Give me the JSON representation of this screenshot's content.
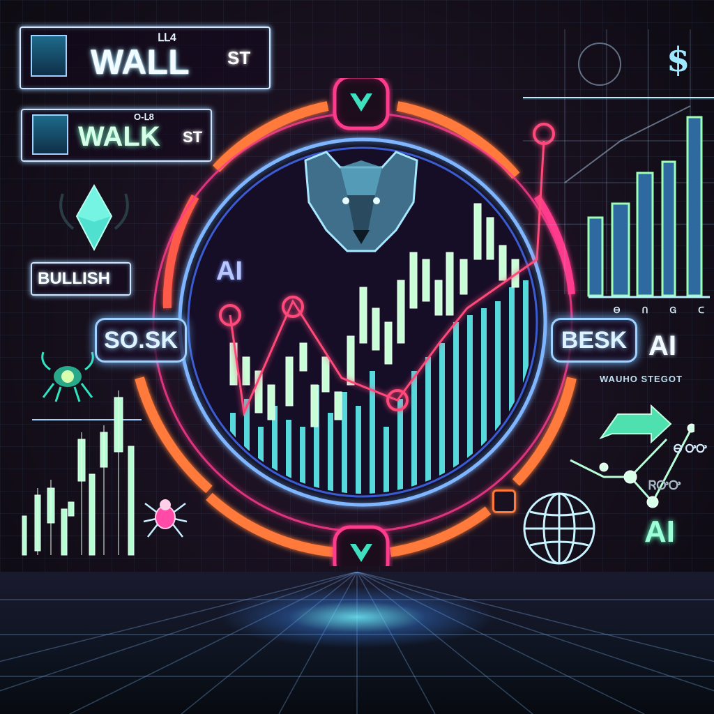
{
  "signs": {
    "top": {
      "title": "WALL",
      "ticker": "ST",
      "tag": "ᒪᒪ4"
    },
    "second": {
      "title": "WALK",
      "ticker": "ST",
      "tag": "O-ᒪ8"
    },
    "bullish": {
      "label": "BULLISH"
    }
  },
  "buttons": {
    "left": "SO.SK",
    "right": "BESK"
  },
  "labels": {
    "ai_center": "AI",
    "ai_right": "AI",
    "ai_bottom_right": "AI",
    "dollar": "$",
    "right_strip": "WAUHO STEGOT",
    "right_small": "Ꮎ ᎤᎤ",
    "right_tiny": "ᏒᎤᎤ",
    "axis_marks": "Ꮎ ᑎ Ꮐ ᑕ"
  },
  "colors": {
    "neon_pink": "#ff3b8d",
    "neon_orange": "#ff7a3a",
    "neon_cyan": "#6ff0ff",
    "neon_blue": "#7fb6ff",
    "neon_green": "#9dffb8"
  },
  "icons": [
    "bear-head-icon",
    "chevron-down-icon",
    "diamond-crystal-icon",
    "globe-icon",
    "arrow-right-icon",
    "crab-icon"
  ]
}
